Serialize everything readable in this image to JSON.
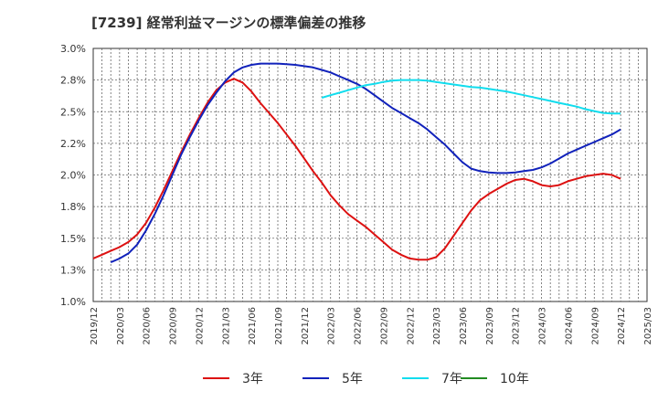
{
  "chart_data": {
    "type": "line",
    "title": "[7239]  経常利益マージンの標準偏差の推移",
    "xlabel": "",
    "ylabel": "",
    "ylim": [
      1.0,
      3.0
    ],
    "y_ticks": [
      "1.0%",
      "1.3%",
      "1.5%",
      "1.8%",
      "2.0%",
      "2.2%",
      "2.5%",
      "2.8%",
      "3.0%"
    ],
    "x_ticks": [
      "2019/12",
      "2020/03",
      "2020/06",
      "2020/09",
      "2020/12",
      "2021/03",
      "2021/06",
      "2021/09",
      "2021/12",
      "2022/03",
      "2022/06",
      "2022/09",
      "2022/12",
      "2023/03",
      "2023/06",
      "2023/09",
      "2023/12",
      "2024/03",
      "2024/06",
      "2024/09",
      "2024/12",
      "2025/03"
    ],
    "grid": true,
    "legend_position": "bottom",
    "series": [
      {
        "name": "3年",
        "color": "#dd1111",
        "points": [
          [
            "2019/12",
            1.34
          ],
          [
            "2020/01",
            1.37
          ],
          [
            "2020/02",
            1.4
          ],
          [
            "2020/03",
            1.43
          ],
          [
            "2020/04",
            1.47
          ],
          [
            "2020/05",
            1.53
          ],
          [
            "2020/06",
            1.62
          ],
          [
            "2020/07",
            1.74
          ],
          [
            "2020/08",
            1.88
          ],
          [
            "2020/09",
            2.03
          ],
          [
            "2020/10",
            2.18
          ],
          [
            "2020/11",
            2.32
          ],
          [
            "2020/12",
            2.45
          ],
          [
            "2021/01",
            2.57
          ],
          [
            "2021/02",
            2.67
          ],
          [
            "2021/03",
            2.73
          ],
          [
            "2021/04",
            2.76
          ],
          [
            "2021/05",
            2.73
          ],
          [
            "2021/06",
            2.66
          ],
          [
            "2021/07",
            2.57
          ],
          [
            "2021/08",
            2.49
          ],
          [
            "2021/09",
            2.41
          ],
          [
            "2021/10",
            2.32
          ],
          [
            "2021/11",
            2.23
          ],
          [
            "2021/12",
            2.13
          ],
          [
            "2022/01",
            2.03
          ],
          [
            "2022/02",
            1.94
          ],
          [
            "2022/03",
            1.84
          ],
          [
            "2022/04",
            1.76
          ],
          [
            "2022/05",
            1.69
          ],
          [
            "2022/06",
            1.64
          ],
          [
            "2022/07",
            1.59
          ],
          [
            "2022/08",
            1.53
          ],
          [
            "2022/09",
            1.47
          ],
          [
            "2022/10",
            1.41
          ],
          [
            "2022/11",
            1.37
          ],
          [
            "2022/12",
            1.34
          ],
          [
            "2023/01",
            1.33
          ],
          [
            "2023/02",
            1.33
          ],
          [
            "2023/03",
            1.35
          ],
          [
            "2023/04",
            1.42
          ],
          [
            "2023/05",
            1.52
          ],
          [
            "2023/06",
            1.62
          ],
          [
            "2023/07",
            1.72
          ],
          [
            "2023/08",
            1.8
          ],
          [
            "2023/09",
            1.85
          ],
          [
            "2023/10",
            1.89
          ],
          [
            "2023/11",
            1.93
          ],
          [
            "2023/12",
            1.96
          ],
          [
            "2024/01",
            1.97
          ],
          [
            "2024/02",
            1.95
          ],
          [
            "2024/03",
            1.92
          ],
          [
            "2024/04",
            1.91
          ],
          [
            "2024/05",
            1.92
          ],
          [
            "2024/06",
            1.95
          ],
          [
            "2024/07",
            1.97
          ],
          [
            "2024/08",
            1.99
          ],
          [
            "2024/09",
            2.0
          ],
          [
            "2024/10",
            2.01
          ],
          [
            "2024/11",
            2.0
          ],
          [
            "2024/12",
            1.97
          ]
        ]
      },
      {
        "name": "5年",
        "color": "#1122bb",
        "points": [
          [
            "2020/02",
            1.31
          ],
          [
            "2020/03",
            1.34
          ],
          [
            "2020/04",
            1.38
          ],
          [
            "2020/05",
            1.45
          ],
          [
            "2020/06",
            1.56
          ],
          [
            "2020/07",
            1.69
          ],
          [
            "2020/08",
            1.84
          ],
          [
            "2020/09",
            2.0
          ],
          [
            "2020/10",
            2.16
          ],
          [
            "2020/11",
            2.3
          ],
          [
            "2020/12",
            2.43
          ],
          [
            "2021/01",
            2.55
          ],
          [
            "2021/02",
            2.65
          ],
          [
            "2021/03",
            2.74
          ],
          [
            "2021/04",
            2.81
          ],
          [
            "2021/05",
            2.85
          ],
          [
            "2021/06",
            2.87
          ],
          [
            "2021/07",
            2.88
          ],
          [
            "2021/08",
            2.88
          ],
          [
            "2021/09",
            2.88
          ],
          [
            "2021/10",
            2.875
          ],
          [
            "2021/11",
            2.87
          ],
          [
            "2021/12",
            2.86
          ],
          [
            "2022/01",
            2.85
          ],
          [
            "2022/02",
            2.83
          ],
          [
            "2022/03",
            2.81
          ],
          [
            "2022/04",
            2.78
          ],
          [
            "2022/05",
            2.75
          ],
          [
            "2022/06",
            2.72
          ],
          [
            "2022/07",
            2.68
          ],
          [
            "2022/08",
            2.63
          ],
          [
            "2022/09",
            2.58
          ],
          [
            "2022/10",
            2.53
          ],
          [
            "2022/11",
            2.49
          ],
          [
            "2022/12",
            2.45
          ],
          [
            "2023/01",
            2.41
          ],
          [
            "2023/02",
            2.36
          ],
          [
            "2023/03",
            2.3
          ],
          [
            "2023/04",
            2.24
          ],
          [
            "2023/05",
            2.17
          ],
          [
            "2023/06",
            2.1
          ],
          [
            "2023/07",
            2.05
          ],
          [
            "2023/08",
            2.03
          ],
          [
            "2023/09",
            2.02
          ],
          [
            "2023/10",
            2.015
          ],
          [
            "2023/11",
            2.015
          ],
          [
            "2023/12",
            2.02
          ],
          [
            "2024/01",
            2.03
          ],
          [
            "2024/02",
            2.04
          ],
          [
            "2024/03",
            2.06
          ],
          [
            "2024/04",
            2.09
          ],
          [
            "2024/05",
            2.13
          ],
          [
            "2024/06",
            2.17
          ],
          [
            "2024/07",
            2.2
          ],
          [
            "2024/08",
            2.23
          ],
          [
            "2024/09",
            2.26
          ],
          [
            "2024/10",
            2.29
          ],
          [
            "2024/11",
            2.32
          ],
          [
            "2024/12",
            2.36
          ]
        ]
      },
      {
        "name": "7年",
        "color": "#11ddee",
        "points": [
          [
            "2022/02",
            2.61
          ],
          [
            "2022/03",
            2.63
          ],
          [
            "2022/04",
            2.65
          ],
          [
            "2022/05",
            2.67
          ],
          [
            "2022/06",
            2.69
          ],
          [
            "2022/07",
            2.71
          ],
          [
            "2022/08",
            2.72
          ],
          [
            "2022/09",
            2.735
          ],
          [
            "2022/10",
            2.745
          ],
          [
            "2022/11",
            2.75
          ],
          [
            "2022/12",
            2.75
          ],
          [
            "2023/01",
            2.75
          ],
          [
            "2023/02",
            2.745
          ],
          [
            "2023/03",
            2.735
          ],
          [
            "2023/04",
            2.725
          ],
          [
            "2023/05",
            2.715
          ],
          [
            "2023/06",
            2.705
          ],
          [
            "2023/07",
            2.695
          ],
          [
            "2023/08",
            2.69
          ],
          [
            "2023/09",
            2.68
          ],
          [
            "2023/10",
            2.67
          ],
          [
            "2023/11",
            2.66
          ],
          [
            "2023/12",
            2.645
          ],
          [
            "2024/01",
            2.63
          ],
          [
            "2024/02",
            2.615
          ],
          [
            "2024/03",
            2.6
          ],
          [
            "2024/04",
            2.585
          ],
          [
            "2024/05",
            2.57
          ],
          [
            "2024/06",
            2.555
          ],
          [
            "2024/07",
            2.54
          ],
          [
            "2024/08",
            2.52
          ],
          [
            "2024/09",
            2.505
          ],
          [
            "2024/10",
            2.49
          ],
          [
            "2024/11",
            2.485
          ],
          [
            "2024/12",
            2.485
          ]
        ]
      },
      {
        "name": "10年",
        "color": "#228b22",
        "points": []
      }
    ]
  }
}
